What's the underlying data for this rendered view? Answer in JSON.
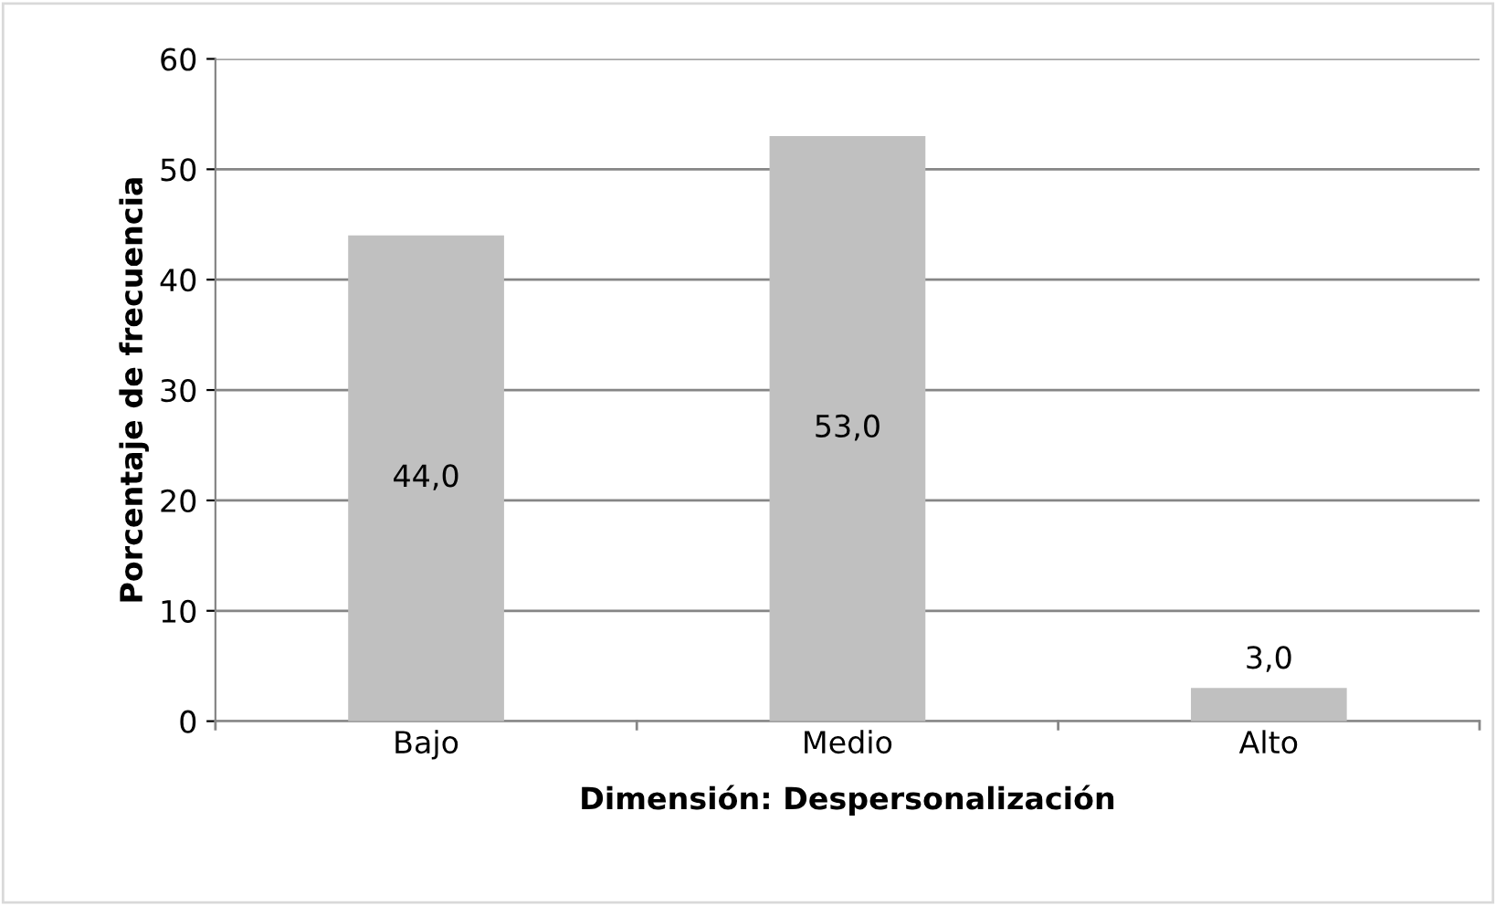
{
  "chart_data": {
    "type": "bar",
    "xlabel": "Dimensión: Despersonalización",
    "ylabel": "Porcentaje de frecuencia",
    "categories": [
      "Bajo",
      "Medio",
      "Alto"
    ],
    "values": [
      44.0,
      53.0,
      3.0
    ],
    "value_labels": [
      "44,0",
      "53,0",
      "3,0"
    ],
    "color": "#c0c0c0",
    "ylim": [
      0,
      60
    ],
    "yticks": [
      0,
      10,
      20,
      30,
      40,
      50,
      60
    ],
    "grid": "y",
    "legend": false
  }
}
